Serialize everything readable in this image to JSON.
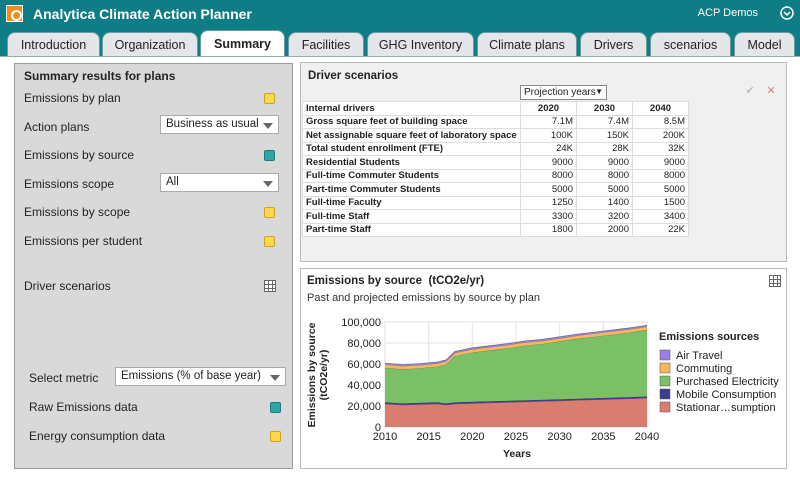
{
  "app": {
    "title": "Analytica Climate Action Planner",
    "user": "ACP Demos"
  },
  "tabs": [
    {
      "label": "Introduction",
      "active": false
    },
    {
      "label": "Organization",
      "active": false
    },
    {
      "label": "Summary",
      "active": true
    },
    {
      "label": "Facilities",
      "active": false
    },
    {
      "label": "GHG Inventory",
      "active": false
    },
    {
      "label": "Climate plans",
      "active": false
    },
    {
      "label": "Drivers",
      "active": false
    },
    {
      "label": "scenarios",
      "active": false
    },
    {
      "label": "Model",
      "active": false
    }
  ],
  "left": {
    "title": "Summary results for plans",
    "emissions_by_plan": "Emissions by plan",
    "action_plans": "Action plans",
    "action_plans_value": "Business as usual",
    "emissions_by_source": "Emissions by source",
    "emissions_scope": "Emissions scope",
    "emissions_scope_value": "All",
    "emissions_by_scope": "Emissions by scope",
    "emissions_per_student": "Emissions per student",
    "driver_scenarios": "Driver scenarios",
    "select_metric": "Select metric",
    "select_metric_value": "Emissions (% of base year)",
    "raw_emissions": "Raw Emissions data",
    "energy_consumption": "Energy consumption data"
  },
  "drivers": {
    "title": "Driver scenarios",
    "projection_label": "Projection years",
    "corner_label": "Internal drivers",
    "years": [
      "2020",
      "2030",
      "2040"
    ],
    "rows": [
      {
        "label": "Gross square feet of building space",
        "values": [
          "7.1M",
          "7.4M",
          "8.5M"
        ]
      },
      {
        "label": "Net assignable square feet of laboratory space",
        "values": [
          "100K",
          "150K",
          "200K"
        ]
      },
      {
        "label": "Total student enrollment (FTE)",
        "values": [
          "24K",
          "28K",
          "32K"
        ]
      },
      {
        "label": "Residential Students",
        "values": [
          "9000",
          "9000",
          "9000"
        ]
      },
      {
        "label": "Full-time Commuter Students",
        "values": [
          "8000",
          "8000",
          "8000"
        ]
      },
      {
        "label": "Part-time Commuter Students",
        "values": [
          "5000",
          "5000",
          "5000"
        ]
      },
      {
        "label": "Full-time Faculty",
        "values": [
          "1250",
          "1400",
          "1500"
        ]
      },
      {
        "label": "Full-time Staff",
        "values": [
          "3300",
          "3200",
          "3400"
        ]
      },
      {
        "label": "Part-time Staff",
        "values": [
          "1800",
          "2000",
          "22K"
        ]
      }
    ]
  },
  "emissions": {
    "title": "Emissions by source",
    "units": "(tCO2e/yr)",
    "subtitle": "Past and projected emissions by source by plan"
  },
  "chart_data": {
    "type": "area",
    "stacked": true,
    "xlabel": "Years",
    "ylabel": "Emissions by source (tCO2e/yr)",
    "xlim": [
      2010,
      2040
    ],
    "ylim": [
      0,
      100000
    ],
    "xticks": [
      "2010",
      "2015",
      "2020",
      "2025",
      "2030",
      "2035",
      "2040"
    ],
    "yticks": [
      "0",
      "20,000",
      "40,000",
      "60,000",
      "80,000",
      "100,000"
    ],
    "legend_title": "Emissions sources",
    "legend_position": "right",
    "x": [
      2010,
      2012,
      2014,
      2016,
      2017,
      2018,
      2020,
      2022,
      2024,
      2026,
      2028,
      2030,
      2032,
      2034,
      2036,
      2038,
      2040
    ],
    "series": [
      {
        "name": "Stationar…sumption",
        "color": "#d87d6f",
        "values": [
          22000,
          21000,
          21500,
          22000,
          21000,
          22000,
          22500,
          23000,
          23500,
          24000,
          24500,
          25000,
          25500,
          26000,
          26500,
          27000,
          27500
        ]
      },
      {
        "name": "Mobile Consumption",
        "color": "#3d3d8f",
        "values": [
          1500,
          1500,
          1500,
          1500,
          1500,
          1500,
          1500,
          1500,
          1500,
          1500,
          1500,
          1500,
          1500,
          1500,
          1500,
          1500,
          1500
        ]
      },
      {
        "name": "Purchased Electricity",
        "color": "#7bbf66",
        "values": [
          33000,
          32500,
          33000,
          34000,
          37000,
          44000,
          47000,
          48500,
          50000,
          52000,
          53000,
          55000,
          57000,
          58500,
          60000,
          61500,
          63500
        ]
      },
      {
        "name": "Commuting",
        "color": "#f5b85c",
        "values": [
          3000,
          3000,
          3000,
          3000,
          3000,
          3000,
          3000,
          3000,
          3000,
          3000,
          3000,
          3000,
          3000,
          3000,
          3000,
          3000,
          3000
        ]
      },
      {
        "name": "Air Travel",
        "color": "#9b7fe0",
        "values": [
          1500,
          1500,
          1500,
          1500,
          1500,
          1500,
          1500,
          1500,
          1500,
          1500,
          1500,
          1500,
          1500,
          1500,
          1500,
          1500,
          1500
        ]
      }
    ],
    "legend_order": [
      "Air Travel",
      "Commuting",
      "Purchased Electricity",
      "Mobile Consumption",
      "Stationar…sumption"
    ]
  }
}
